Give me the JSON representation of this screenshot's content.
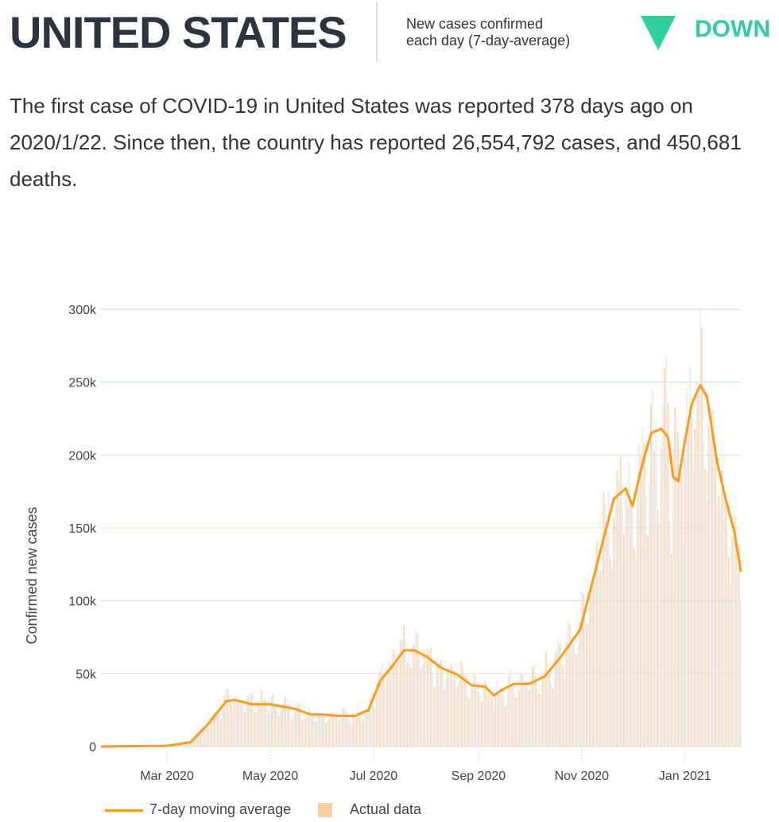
{
  "header": {
    "title": "UNITED STATES",
    "subtitle_line1": "New cases confirmed",
    "subtitle_line2": "each day (7-day-average)",
    "trend": "DOWN",
    "trend_color": "#2fd199"
  },
  "summary": "The first case of COVID-19 in United States was reported 378 days ago on 2020/1/22. Since then, the country has reported 26,554,792 cases, and 450,681 deaths.",
  "chart_data": {
    "type": "bar+line",
    "ylabel": "Confirmed new cases",
    "ylim": [
      0,
      300000
    ],
    "yticks": [
      {
        "v": 0,
        "label": "0"
      },
      {
        "v": 50000,
        "label": "50k"
      },
      {
        "v": 100000,
        "label": "100k"
      },
      {
        "v": 150000,
        "label": "150k"
      },
      {
        "v": 200000,
        "label": "200k"
      },
      {
        "v": 250000,
        "label": "250k"
      },
      {
        "v": 300000,
        "label": "300k"
      }
    ],
    "xrange": [
      "2020-01-22",
      "2021-02-03"
    ],
    "xticks": [
      {
        "date": "2020-03-01",
        "label": "Mar 2020"
      },
      {
        "date": "2020-05-01",
        "label": "May 2020"
      },
      {
        "date": "2020-07-01",
        "label": "Jul 2020"
      },
      {
        "date": "2020-09-01",
        "label": "Sep 2020"
      },
      {
        "date": "2020-11-01",
        "label": "Nov 2020"
      },
      {
        "date": "2021-01-01",
        "label": "Jan 2021"
      }
    ],
    "legend": {
      "line": "7-day moving average",
      "bars": "Actual data",
      "position": "bottom-left"
    },
    "line_color": "#ff9a1a",
    "bar_color": "#fccf9e",
    "moving_average": [
      [
        "2020-01-22",
        0
      ],
      [
        "2020-03-01",
        500
      ],
      [
        "2020-03-15",
        3000
      ],
      [
        "2020-03-25",
        15000
      ],
      [
        "2020-04-05",
        31000
      ],
      [
        "2020-04-10",
        32000
      ],
      [
        "2020-04-20",
        29000
      ],
      [
        "2020-05-01",
        29000
      ],
      [
        "2020-05-15",
        26000
      ],
      [
        "2020-05-25",
        22000
      ],
      [
        "2020-06-01",
        22000
      ],
      [
        "2020-06-10",
        21000
      ],
      [
        "2020-06-20",
        21000
      ],
      [
        "2020-06-28",
        25000
      ],
      [
        "2020-07-05",
        45000
      ],
      [
        "2020-07-12",
        55000
      ],
      [
        "2020-07-19",
        66000
      ],
      [
        "2020-07-25",
        66000
      ],
      [
        "2020-08-01",
        62000
      ],
      [
        "2020-08-10",
        54000
      ],
      [
        "2020-08-20",
        49000
      ],
      [
        "2020-08-28",
        42000
      ],
      [
        "2020-09-05",
        41000
      ],
      [
        "2020-09-10",
        35000
      ],
      [
        "2020-09-15",
        39000
      ],
      [
        "2020-09-22",
        43000
      ],
      [
        "2020-10-01",
        43000
      ],
      [
        "2020-10-10",
        48000
      ],
      [
        "2020-10-20",
        62000
      ],
      [
        "2020-10-31",
        80000
      ],
      [
        "2020-11-10",
        125000
      ],
      [
        "2020-11-20",
        170000
      ],
      [
        "2020-11-27",
        177000
      ],
      [
        "2020-12-01",
        165000
      ],
      [
        "2020-12-06",
        190000
      ],
      [
        "2020-12-12",
        215000
      ],
      [
        "2020-12-18",
        218000
      ],
      [
        "2020-12-22",
        212000
      ],
      [
        "2020-12-25",
        185000
      ],
      [
        "2020-12-28",
        182000
      ],
      [
        "2021-01-01",
        210000
      ],
      [
        "2021-01-05",
        235000
      ],
      [
        "2021-01-10",
        248000
      ],
      [
        "2021-01-14",
        240000
      ],
      [
        "2021-01-20",
        195000
      ],
      [
        "2021-01-25",
        170000
      ],
      [
        "2021-01-30",
        148000
      ],
      [
        "2021-02-03",
        120000
      ]
    ]
  }
}
